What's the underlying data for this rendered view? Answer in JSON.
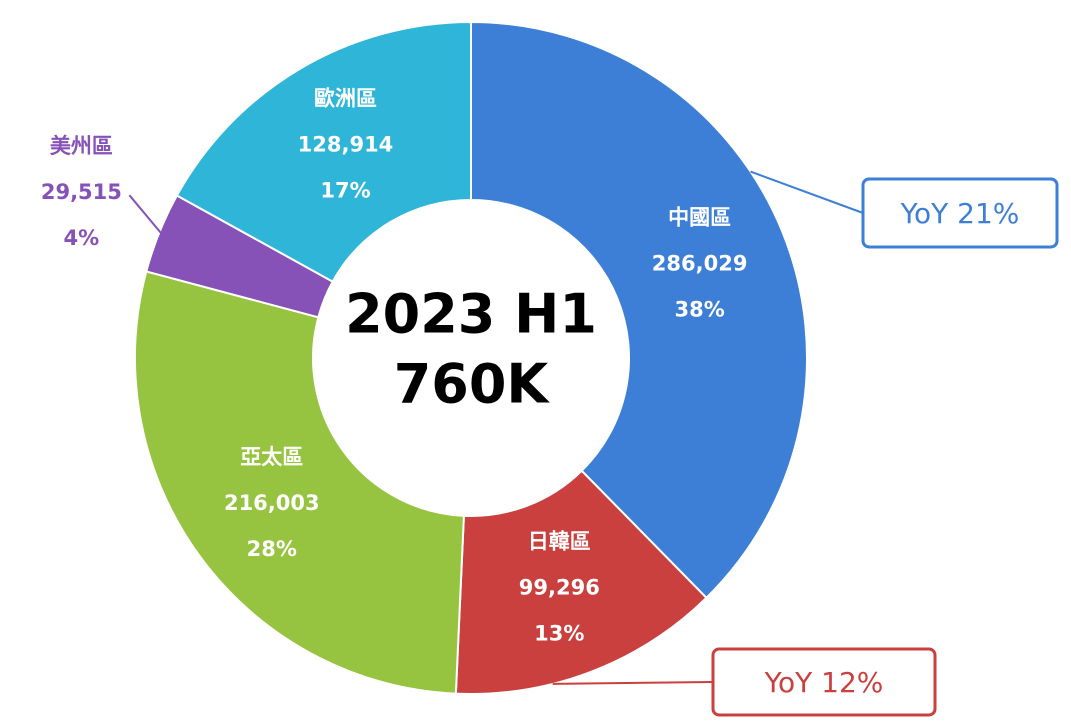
{
  "chart_data": {
    "type": "donut",
    "center_text": [
      "2023 H1",
      "760K"
    ],
    "categories": [
      "中國區",
      "日韓區",
      "亞太區",
      "美州區",
      "歐洲區"
    ],
    "values": [
      286029,
      99296,
      216003,
      29515,
      128914
    ],
    "value_labels": [
      "286,029",
      "99,296",
      "216,003",
      "29,515",
      "128,914"
    ],
    "percent_labels": [
      "38%",
      "13%",
      "28%",
      "4%",
      "17%"
    ],
    "colors": [
      "#3d7fd6",
      "#c9403e",
      "#96c440",
      "#8652b8",
      "#2fb5d8"
    ],
    "annotations": [
      {
        "text": "YoY 21%",
        "category": 0
      },
      {
        "text": "YoY 12%",
        "category": 1
      }
    ]
  }
}
